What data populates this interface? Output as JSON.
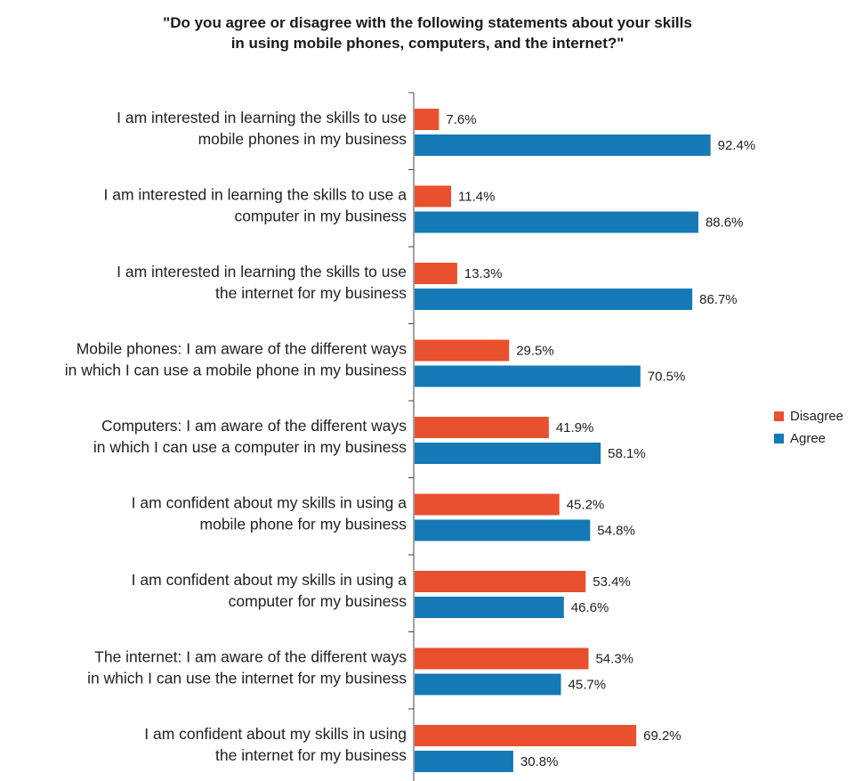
{
  "chart_data": {
    "type": "bar",
    "orientation": "horizontal",
    "title_lines": [
      "\"Do you agree or disagree with the following statements about your skills",
      "in using mobile phones, computers, and the internet?\""
    ],
    "categories": [
      [
        "I am interested in learning the skills to use",
        "mobile phones in my business"
      ],
      [
        "I am interested in learning the skills to use a",
        "computer in my business"
      ],
      [
        "I am interested in learning the skills to use",
        "the internet for my business"
      ],
      [
        "Mobile phones: I am aware of the different ways",
        "in which I can use a mobile phone in my business"
      ],
      [
        "Computers: I am aware of the different ways",
        "in which I can use a computer in my business"
      ],
      [
        "I am confident about my skills in using a",
        "mobile phone for my business"
      ],
      [
        "I am confident about my skills in using a",
        "computer for my business"
      ],
      [
        "The internet: I am aware of the different ways",
        "in which I can use the internet for my business"
      ],
      [
        "I am confident about my skills in using",
        "the internet for my business"
      ]
    ],
    "series": [
      {
        "name": "Disagree",
        "color": "#e8502e",
        "values": [
          7.6,
          11.4,
          13.3,
          29.5,
          41.9,
          45.2,
          53.4,
          54.3,
          69.2
        ],
        "labels": [
          "7.6%",
          "11.4%",
          "13.3%",
          "29.5%",
          "41.9%",
          "45.2%",
          "53.4%",
          "54.3%",
          "69.2%"
        ]
      },
      {
        "name": "Agree",
        "color": "#1479b5",
        "values": [
          92.4,
          88.6,
          86.7,
          70.5,
          58.1,
          54.8,
          46.6,
          45.7,
          30.8
        ],
        "labels": [
          "92.4%",
          "88.6%",
          "86.7%",
          "70.5%",
          "58.1%",
          "54.8%",
          "46.6%",
          "45.7%",
          "30.8%"
        ]
      }
    ],
    "xlim": [
      0,
      100
    ],
    "legend_position": "right",
    "grid": false
  }
}
